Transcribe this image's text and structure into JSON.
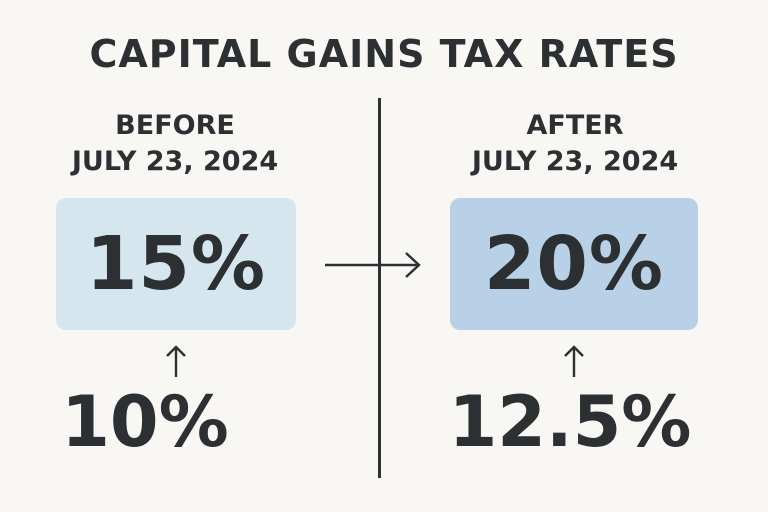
{
  "title": "CAPITAL GAINS TAX RATES",
  "before": {
    "heading_line1": "BEFORE",
    "heading_line2": "JULY 23, 2024",
    "rate_box": "15%",
    "rate_lower": "10%",
    "box_color": "#d6e6ef"
  },
  "after": {
    "heading_line1": "AFTER",
    "heading_line2": "JULY 23, 2024",
    "rate_box": "20%",
    "rate_lower": "12.5%",
    "box_color": "#b8d1e6"
  },
  "colors": {
    "background": "#f8f7f4",
    "text": "#2c3033"
  },
  "icons": {
    "transition": "right-arrow-icon",
    "increase": "up-arrow-icon"
  }
}
